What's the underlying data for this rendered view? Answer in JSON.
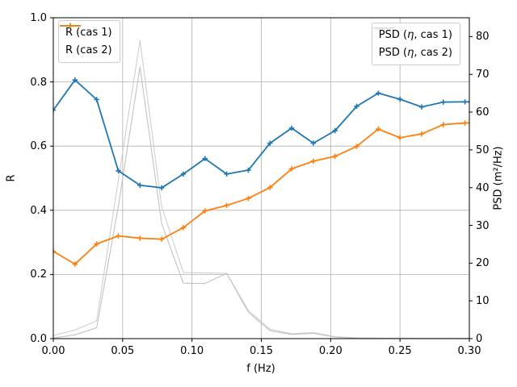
{
  "chart_data": {
    "type": "line",
    "title": "",
    "xlabel": "f (Hz)",
    "ylabel_left": "R",
    "ylabel_right": "PSD (m²/Hz)",
    "xlim": [
      0,
      0.3
    ],
    "ylim_left": [
      0.0,
      1.0
    ],
    "ylim_right": [
      0,
      85
    ],
    "grid": true,
    "grid_color": "#b0b0b0",
    "x_tick_labels": [
      "0.00",
      "0.05",
      "0.10",
      "0.15",
      "0.20",
      "0.25",
      "0.30"
    ],
    "x_tick_values": [
      0,
      0.05,
      0.1,
      0.15,
      0.2,
      0.25,
      0.3
    ],
    "y_left_tick_labels": [
      "0.0",
      "0.2",
      "0.4",
      "0.6",
      "0.8",
      "1.0"
    ],
    "y_left_tick_values": [
      0.0,
      0.2,
      0.4,
      0.6,
      0.8,
      1.0
    ],
    "y_right_tick_labels": [
      "0",
      "10",
      "20",
      "30",
      "40",
      "50",
      "60",
      "70",
      "80"
    ],
    "y_right_tick_values": [
      0,
      10,
      20,
      30,
      40,
      50,
      60,
      70,
      80
    ],
    "x": [
      0.0,
      0.015625,
      0.03125,
      0.046875,
      0.0625,
      0.078125,
      0.09375,
      0.109375,
      0.125,
      0.140625,
      0.15625,
      0.171875,
      0.1875,
      0.203125,
      0.21875,
      0.234375,
      0.25,
      0.265625,
      0.28125,
      0.296875,
      0.3125
    ],
    "series": [
      {
        "name": "R (cas 1)",
        "axis": "left",
        "color": "#1f77b4",
        "marker": "+",
        "linewidth": 1.8,
        "values": [
          0.712,
          0.806,
          0.745,
          0.523,
          0.478,
          0.47,
          0.513,
          0.561,
          0.513,
          0.525,
          0.609,
          0.656,
          0.609,
          0.648,
          0.724,
          0.765,
          0.746,
          0.722,
          0.737,
          0.738,
          0.737
        ]
      },
      {
        "name": "R (cas 2)",
        "axis": "left",
        "color": "#ff7f0e",
        "marker": "+",
        "linewidth": 1.8,
        "values": [
          0.272,
          0.232,
          0.295,
          0.32,
          0.313,
          0.31,
          0.346,
          0.398,
          0.415,
          0.437,
          0.471,
          0.529,
          0.553,
          0.568,
          0.599,
          0.653,
          0.626,
          0.638,
          0.667,
          0.672,
          0.674
        ]
      },
      {
        "name": "PSD (η, cas 1)",
        "axis": "right",
        "color": "#cfcfcf",
        "marker": "none",
        "linewidth": 1.1,
        "values": [
          0.8,
          2.3,
          4.7,
          42.0,
          79.0,
          35.0,
          17.5,
          17.4,
          17.3,
          7.5,
          2.5,
          1.3,
          1.6,
          0.5,
          0.2,
          0.15,
          0.12,
          0.1,
          0.1,
          0.1,
          0.1
        ]
      },
      {
        "name": "PSD (η, cas 2)",
        "axis": "right",
        "color": "#c3c3c3",
        "marker": "none",
        "linewidth": 1.1,
        "values": [
          0.15,
          1.0,
          2.9,
          35.0,
          72.0,
          30.5,
          14.7,
          14.6,
          17.3,
          7.0,
          2.1,
          1.1,
          1.4,
          0.4,
          0.15,
          0.1,
          0.1,
          0.08,
          0.08,
          0.08,
          0.08
        ]
      }
    ],
    "legends": [
      {
        "position": "upper left",
        "entries": [
          "R (cas 1)",
          "R (cas 2)"
        ]
      },
      {
        "position": "upper right",
        "entries": [
          "PSD (η, cas 1)",
          "PSD (η, cas 2)"
        ]
      }
    ]
  },
  "colors": {
    "series_blue": "#1f77b4",
    "series_orange": "#ff7f0e",
    "psd_gray_1": "#cfcfcf",
    "psd_gray_2": "#c3c3c3",
    "grid": "#b0b0b0",
    "spine": "#000000"
  }
}
